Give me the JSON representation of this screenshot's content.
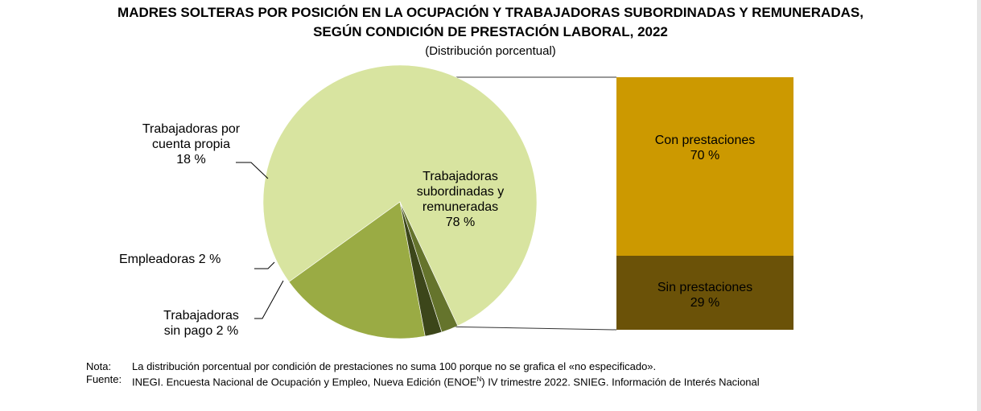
{
  "title_line1": "MADRES SOLTERAS POR POSICIÓN EN LA OCUPACIÓN Y TRABAJADORAS SUBORDINADAS Y REMUNERADAS,",
  "title_line2": "SEGÚN CONDICIÓN DE PRESTACIÓN LABORAL, 2022",
  "subtitle": "(Distribución porcentual)",
  "chart_data": [
    {
      "type": "pie",
      "slices": [
        {
          "label_lines": [
            "Trabajadoras",
            "subordinadas  y",
            "remuneradas",
            "78 %"
          ],
          "value": 78,
          "color": "#d8e4a0"
        },
        {
          "label_lines": [
            "Trabajadoras  por",
            "cuenta propia",
            "18 %"
          ],
          "value": 18,
          "color": "#9aab44"
        },
        {
          "label_lines": [
            "Empleadoras  2 %"
          ],
          "value": 2,
          "color": "#3c461a"
        },
        {
          "label_lines": [
            "Trabajadoras",
            "sin pago 2 %"
          ],
          "value": 2,
          "color": "#65742c"
        }
      ]
    },
    {
      "type": "bar",
      "stacked": true,
      "segments": [
        {
          "label_lines": [
            "Con prestaciones",
            "70 %"
          ],
          "value": 70,
          "color": "#cc9900"
        },
        {
          "label_lines": [
            "Sin prestaciones",
            "29 %"
          ],
          "value": 29,
          "color": "#6b5208"
        }
      ]
    }
  ],
  "notes": {
    "nota_key": "Nota:",
    "nota_text": "La distribución porcentual por condición de prestaciones no suma 100 porque no se grafica el «no especificado».",
    "fuente_key": "Fuente:",
    "fuente_text_before": "INEGI. Encuesta Nacional de Ocupación y Empleo, Nueva Edición (ENOE",
    "fuente_sup": "N",
    "fuente_text_after": ") IV trimestre 2022. SNIEG. Información de Interés Nacional"
  }
}
